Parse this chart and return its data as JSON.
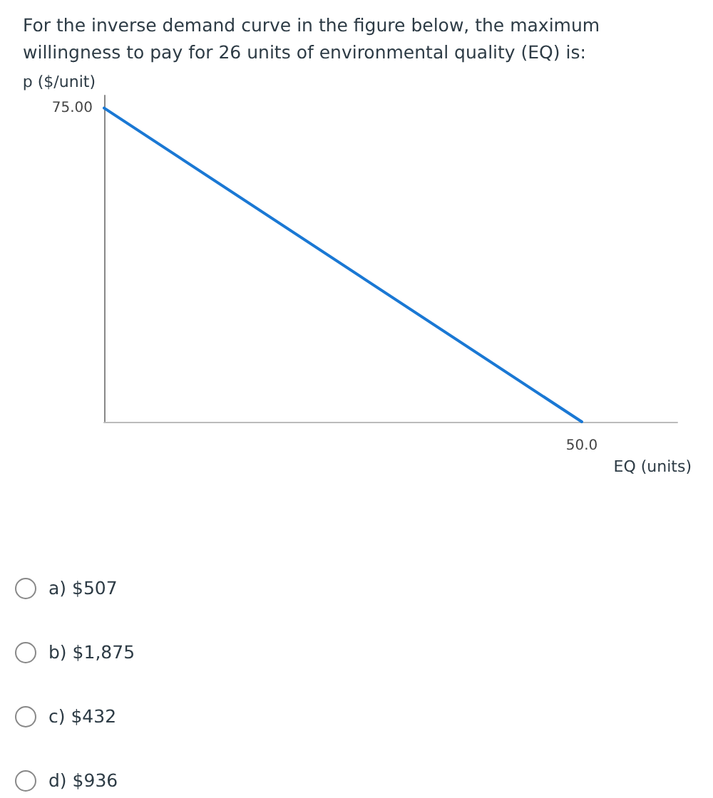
{
  "chart_data": {
    "type": "line",
    "title": "For the inverse demand curve in the figure below, the maximum willingness to pay for 26 units of environmental quality (EQ) is:",
    "ylabel": "p ($/unit)",
    "xlabel": "EQ (units)",
    "categories": [
      null,
      null
    ],
    "ylim": [
      0,
      78
    ],
    "series": [
      {
        "color": "#1a78d4",
        "values": [
          75,
          0
        ],
        "value_labels": [
          "75.00",
          null
        ]
      }
    ],
    "marker": "none",
    "line_style": "solid",
    "grid": false,
    "annotations": [
      {
        "text": "50.0",
        "y": 0
      },
      "a)  $507",
      "b)  $1,875",
      "c)  $432",
      "d)  $936"
    ]
  }
}
